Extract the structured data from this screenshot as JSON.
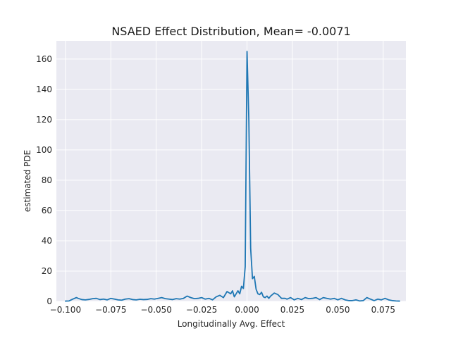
{
  "chart_data": {
    "type": "line",
    "title": "NSAED Effect Distribution, Mean= -0.0071",
    "xlabel": "Longitudinally Avg. Effect",
    "ylabel": "estimated PDE",
    "xlim": [
      -0.105,
      0.0875
    ],
    "ylim": [
      0,
      172
    ],
    "grid": true,
    "x_ticks": [
      -0.1,
      -0.075,
      -0.05,
      -0.025,
      0.0,
      0.025,
      0.05,
      0.075
    ],
    "x_tick_labels": [
      "−0.100",
      "−0.075",
      "−0.050",
      "−0.025",
      "0.000",
      "0.025",
      "0.050",
      "0.075"
    ],
    "y_ticks": [
      0,
      20,
      40,
      60,
      80,
      100,
      120,
      140,
      160
    ],
    "y_tick_labels": [
      "0",
      "20",
      "40",
      "60",
      "80",
      "100",
      "120",
      "140",
      "160"
    ],
    "colors": {
      "line": "#1f77b4",
      "background": "#eaeaf2",
      "grid": "#ffffff"
    },
    "series": [
      {
        "x": [
          -0.1,
          -0.098,
          -0.096,
          -0.094,
          -0.093,
          -0.091,
          -0.089,
          -0.087,
          -0.085,
          -0.083,
          -0.081,
          -0.079,
          -0.077,
          -0.075,
          -0.073,
          -0.071,
          -0.069,
          -0.067,
          -0.065,
          -0.063,
          -0.061,
          -0.059,
          -0.057,
          -0.055,
          -0.053,
          -0.051,
          -0.049,
          -0.047,
          -0.045,
          -0.043,
          -0.041,
          -0.039,
          -0.037,
          -0.035,
          -0.033,
          -0.031,
          -0.029,
          -0.027,
          -0.025,
          -0.023,
          -0.021,
          -0.019,
          -0.018,
          -0.017,
          -0.016,
          -0.015,
          -0.013,
          -0.011,
          -0.009,
          -0.008,
          -0.007,
          -0.005,
          -0.004,
          -0.003,
          -0.002,
          -0.001,
          0.0,
          0.001,
          0.002,
          0.003,
          0.004,
          0.005,
          0.006,
          0.007,
          0.008,
          0.009,
          0.01,
          0.011,
          0.012,
          0.013,
          0.015,
          0.017,
          0.019,
          0.021,
          0.022,
          0.024,
          0.026,
          0.028,
          0.03,
          0.032,
          0.034,
          0.036,
          0.038,
          0.04,
          0.042,
          0.044,
          0.046,
          0.048,
          0.05,
          0.052,
          0.054,
          0.056,
          0.058,
          0.06,
          0.062,
          0.064,
          0.066,
          0.068,
          0.07,
          0.072,
          0.074,
          0.076,
          0.078,
          0.08,
          0.082,
          0.084
        ],
        "y": [
          0.2,
          0.3,
          1.5,
          2.5,
          2.0,
          1.2,
          1.0,
          1.3,
          1.8,
          2.0,
          1.2,
          1.5,
          1.0,
          2.0,
          1.5,
          1.0,
          0.8,
          1.5,
          1.8,
          1.2,
          1.0,
          1.4,
          1.2,
          1.3,
          1.8,
          1.5,
          2.0,
          2.5,
          1.8,
          1.5,
          1.2,
          1.8,
          1.5,
          2.0,
          3.5,
          2.5,
          1.8,
          2.0,
          2.5,
          1.5,
          2.0,
          1.0,
          2.0,
          3.0,
          3.5,
          4.0,
          2.5,
          6.5,
          5.0,
          7.0,
          3.0,
          7.0,
          5.0,
          10.0,
          8.5,
          23.0,
          165.0,
          120.0,
          35.0,
          15.0,
          16.5,
          8.0,
          5.0,
          4.5,
          6.0,
          3.0,
          2.5,
          3.5,
          2.0,
          3.5,
          5.5,
          4.5,
          2.0,
          2.0,
          1.5,
          2.5,
          1.0,
          2.0,
          1.2,
          2.5,
          1.8,
          2.0,
          2.5,
          1.2,
          2.5,
          2.0,
          1.5,
          2.0,
          1.0,
          2.0,
          1.0,
          0.5,
          0.5,
          1.0,
          0.3,
          0.5,
          2.5,
          1.5,
          0.5,
          1.5,
          1.0,
          2.0,
          1.0,
          0.5,
          0.3,
          0.2
        ]
      }
    ]
  }
}
